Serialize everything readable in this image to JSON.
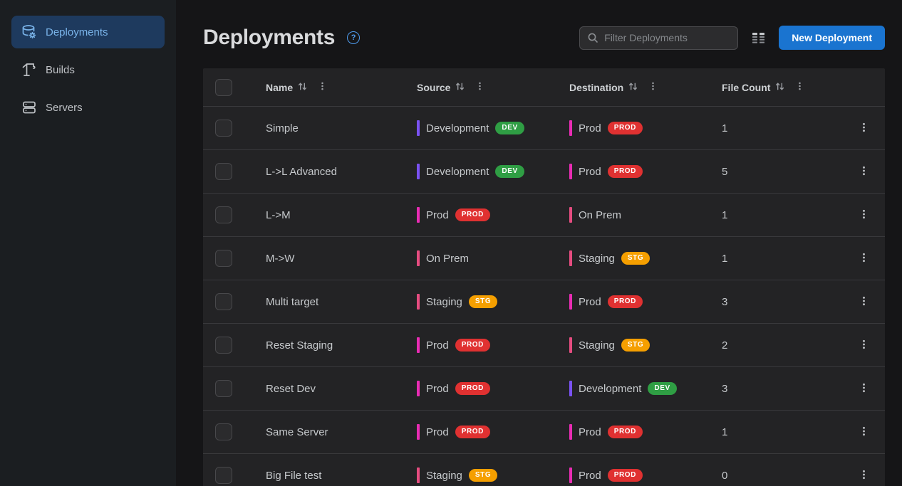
{
  "sidebar": {
    "items": [
      {
        "label": "Deployments",
        "icon": "database-gear-icon",
        "active": true
      },
      {
        "label": "Builds",
        "icon": "crane-icon",
        "active": false
      },
      {
        "label": "Servers",
        "icon": "servers-icon",
        "active": false
      }
    ]
  },
  "header": {
    "title": "Deployments",
    "help_label": "?",
    "filter_placeholder": "Filter Deployments",
    "new_deployment_label": "New Deployment"
  },
  "table": {
    "columns": [
      {
        "label": "Name"
      },
      {
        "label": "Source"
      },
      {
        "label": "Destination"
      },
      {
        "label": "File Count"
      }
    ],
    "rows": [
      {
        "name": "Simple",
        "source": {
          "server": "Development",
          "bar_color": "#7a52f4",
          "badge": "DEV",
          "badge_color": "#2f9e44"
        },
        "destination": {
          "server": "Prod",
          "bar_color": "#e92cb4",
          "badge": "PROD",
          "badge_color": "#e03131"
        },
        "file_count": "1"
      },
      {
        "name": "L->L Advanced",
        "source": {
          "server": "Development",
          "bar_color": "#7a52f4",
          "badge": "DEV",
          "badge_color": "#2f9e44"
        },
        "destination": {
          "server": "Prod",
          "bar_color": "#e92cb4",
          "badge": "PROD",
          "badge_color": "#e03131"
        },
        "file_count": "5"
      },
      {
        "name": "L->M",
        "source": {
          "server": "Prod",
          "bar_color": "#e92cb4",
          "badge": "PROD",
          "badge_color": "#e03131"
        },
        "destination": {
          "server": "On Prem",
          "bar_color": "#e64c80",
          "badge": null,
          "badge_color": null
        },
        "file_count": "1"
      },
      {
        "name": "M->W",
        "source": {
          "server": "On Prem",
          "bar_color": "#e64c80",
          "badge": null,
          "badge_color": null
        },
        "destination": {
          "server": "Staging",
          "bar_color": "#e64c80",
          "badge": "STG",
          "badge_color": "#f59f00"
        },
        "file_count": "1"
      },
      {
        "name": "Multi target",
        "source": {
          "server": "Staging",
          "bar_color": "#e64c80",
          "badge": "STG",
          "badge_color": "#f59f00"
        },
        "destination": {
          "server": "Prod",
          "bar_color": "#e92cb4",
          "badge": "PROD",
          "badge_color": "#e03131"
        },
        "file_count": "3"
      },
      {
        "name": "Reset Staging",
        "source": {
          "server": "Prod",
          "bar_color": "#e92cb4",
          "badge": "PROD",
          "badge_color": "#e03131"
        },
        "destination": {
          "server": "Staging",
          "bar_color": "#e64c80",
          "badge": "STG",
          "badge_color": "#f59f00"
        },
        "file_count": "2"
      },
      {
        "name": "Reset Dev",
        "source": {
          "server": "Prod",
          "bar_color": "#e92cb4",
          "badge": "PROD",
          "badge_color": "#e03131"
        },
        "destination": {
          "server": "Development",
          "bar_color": "#7a52f4",
          "badge": "DEV",
          "badge_color": "#2f9e44"
        },
        "file_count": "3"
      },
      {
        "name": "Same Server",
        "source": {
          "server": "Prod",
          "bar_color": "#e92cb4",
          "badge": "PROD",
          "badge_color": "#e03131"
        },
        "destination": {
          "server": "Prod",
          "bar_color": "#e92cb4",
          "badge": "PROD",
          "badge_color": "#e03131"
        },
        "file_count": "1"
      },
      {
        "name": "Big File test",
        "source": {
          "server": "Staging",
          "bar_color": "#e64c80",
          "badge": "STG",
          "badge_color": "#f59f00"
        },
        "destination": {
          "server": "Prod",
          "bar_color": "#e92cb4",
          "badge": "PROD",
          "badge_color": "#e03131"
        },
        "file_count": "0"
      }
    ]
  },
  "colors": {
    "accent_blue": "#1a74d0",
    "active_nav_bg": "#1e3a5e",
    "active_nav_text": "#7ab4ea",
    "badge_dev": "#2f9e44",
    "badge_prod": "#e03131",
    "badge_stg": "#f59f00",
    "bar_development": "#7a52f4",
    "bar_prod": "#e92cb4",
    "bar_staging": "#e64c80",
    "bar_onprem": "#e64c80"
  }
}
